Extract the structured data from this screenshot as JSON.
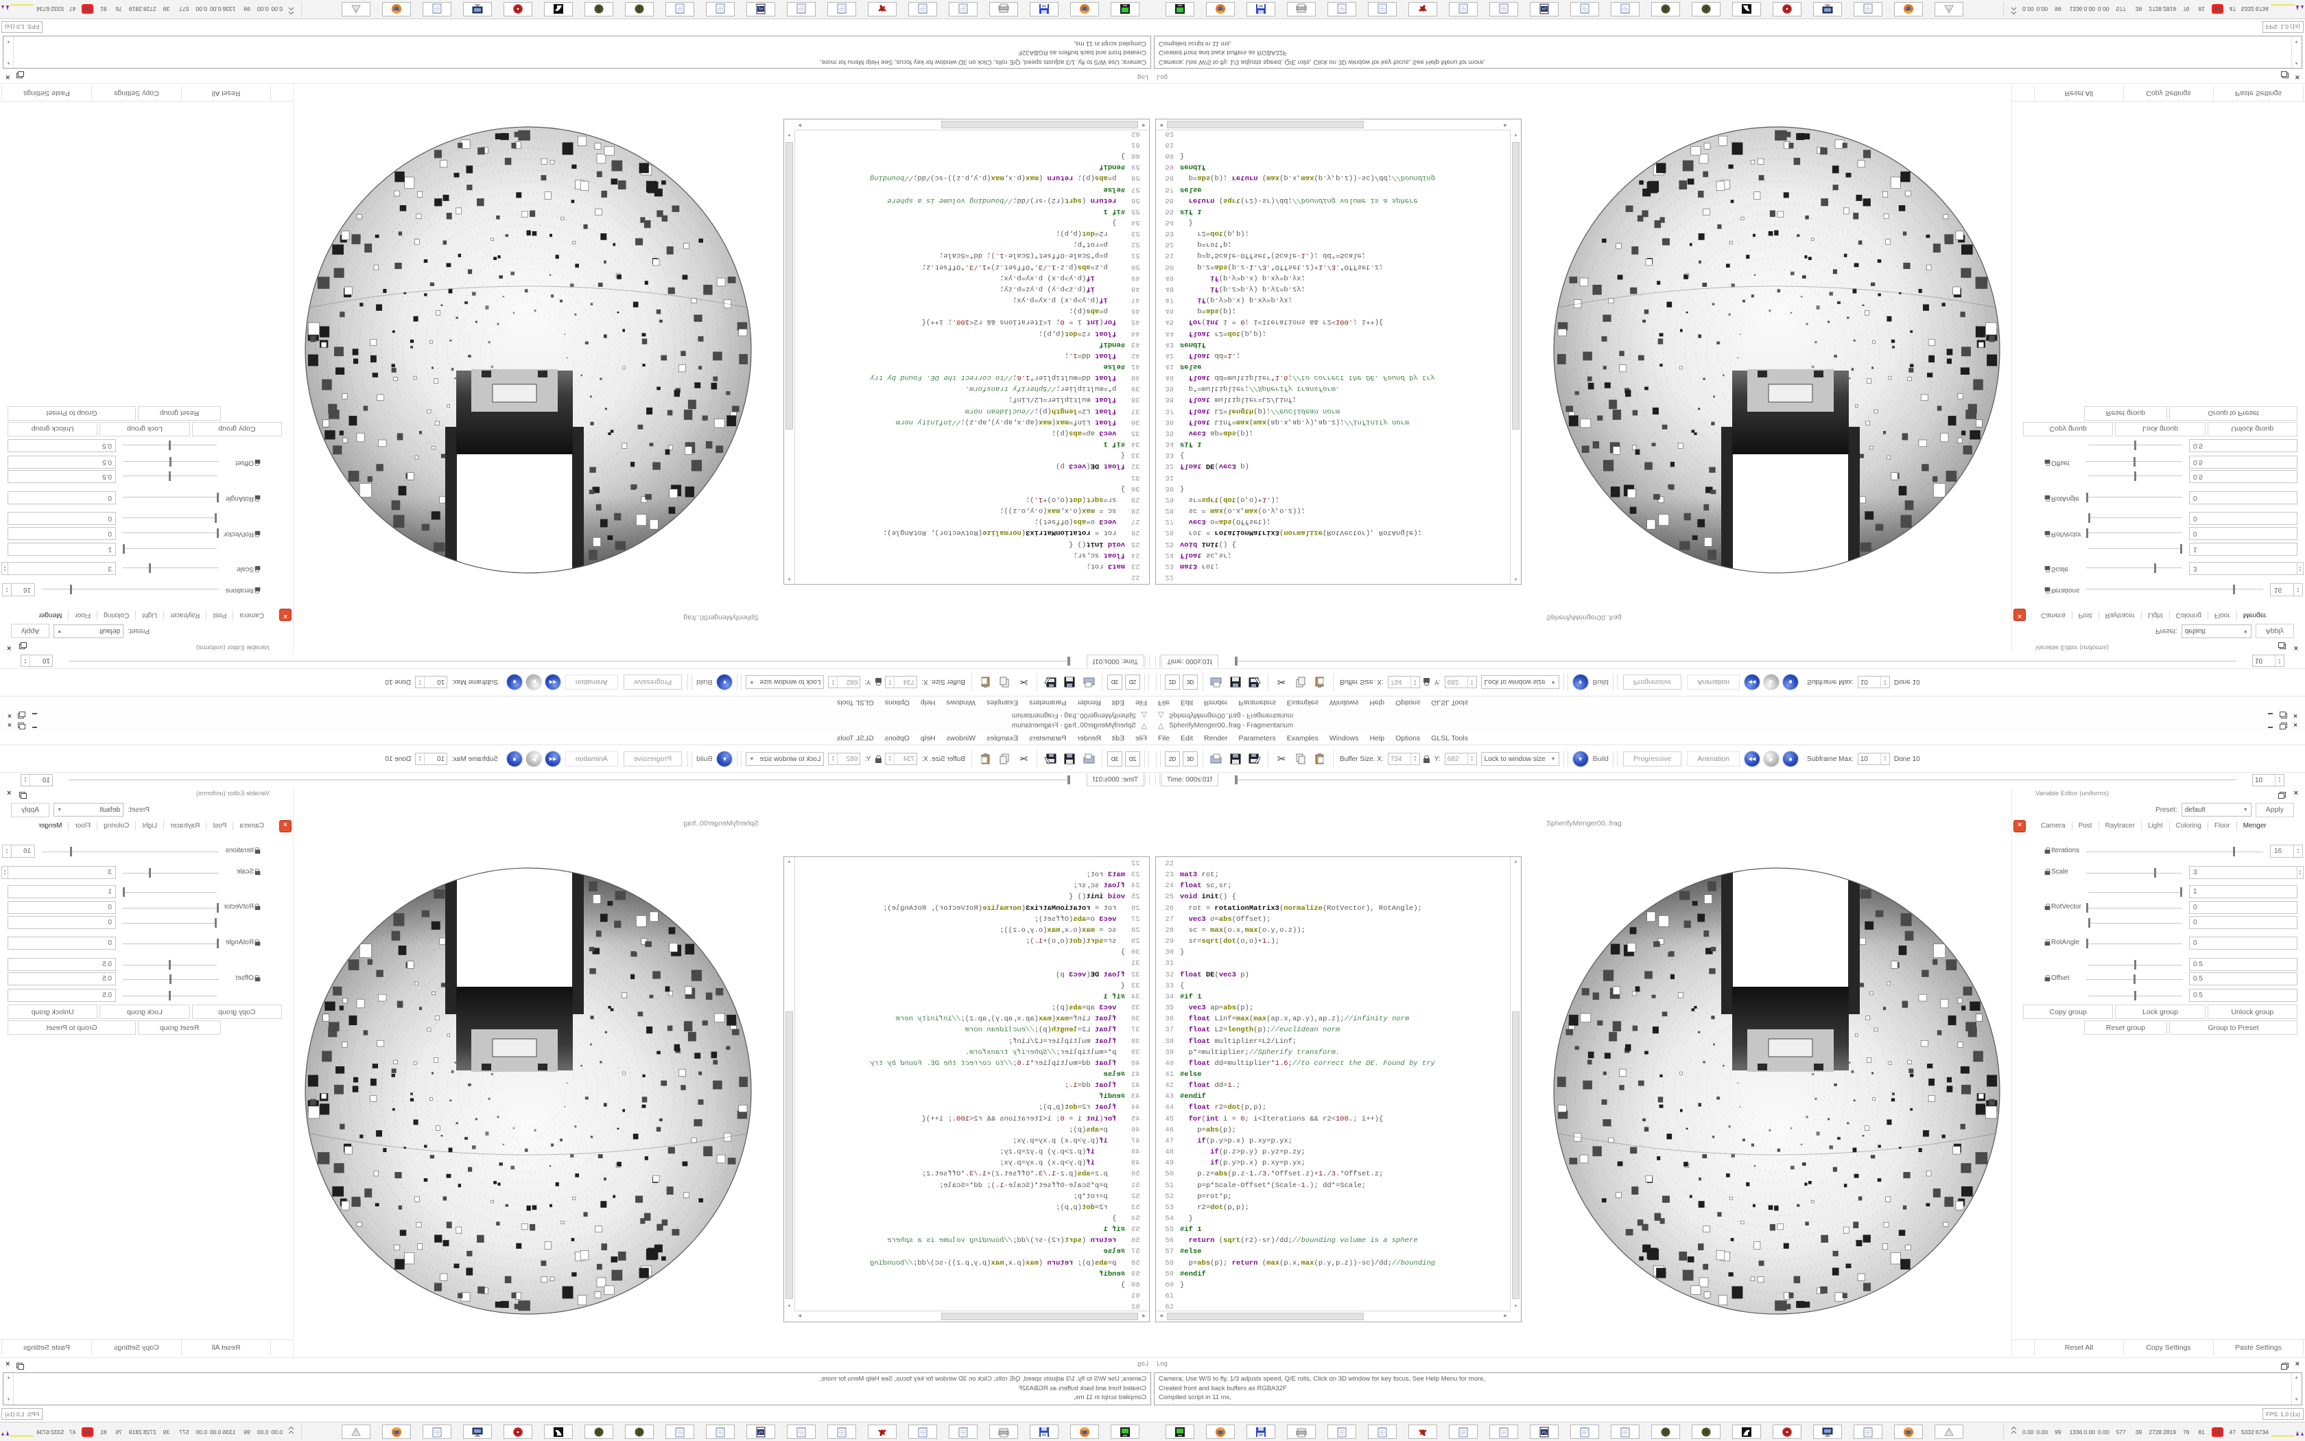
{
  "window": {
    "title": "SpherifyMenger00..frag - Fragmentarium",
    "buttons": {
      "minimize": "minimize",
      "restore": "restore",
      "close": "×"
    }
  },
  "menu": {
    "items": [
      {
        "label": "File"
      },
      {
        "label": "Edit"
      },
      {
        "label": "Render"
      },
      {
        "label": "Parameters"
      },
      {
        "label": "Examples"
      },
      {
        "label": "Windows"
      },
      {
        "label": "Help"
      },
      {
        "label": "Options"
      },
      {
        "label": "GLSL Tools"
      }
    ]
  },
  "toolbar": {
    "btn_2d": "2D",
    "btn_3d": "3D",
    "buffer_size_label": "Buffer Size. X:",
    "buffer_x": "734",
    "buffer_y_label": "Y:",
    "buffer_y": "682",
    "lock_combo_value": "Lock to window size",
    "build_label": "Build",
    "progressive_label": "Progressive",
    "animation_label": "Animation",
    "subframe_max_label": "Subframe Max:",
    "subframe_max_value": "10",
    "done_label": "Done 10"
  },
  "timebar": {
    "label": "Time: 000s:01f",
    "spin_value": "10"
  },
  "editor": {
    "filename_label": "SpherifyMenger00..frag",
    "first_line_number": 22,
    "code": [
      "",
      "mat3 rot;",
      "float sc,sr;",
      "void init() {",
      "  rot = rotationMatrix3(normalize(RotVector), RotAngle);",
      "  vec3 o=abs(Offset);",
      "  sc = max(o.x,max(o.y,o.z));",
      "  sr=sqrt(dot(o,o)+1.);",
      "}",
      "",
      "float DE(vec3 p)",
      "{",
      "#if 1",
      "  vec3 ap=abs(p);",
      "  float Linf=max(max(ap.x,ap.y),ap.z);//infinity norm",
      "  float L2=length(p);//euclidean norm",
      "  float multiplier=L2/Linf;",
      "  p*=multiplier;//Spherify transform.",
      "  float dd=multiplier*1.6;//to correct the DE. Found by try",
      "#else",
      "  float dd=1.;",
      "#endif",
      "  float r2=dot(p,p);",
      "  for(int i = 0; i<Iterations && r2<100.; i++){",
      "    p=abs(p);",
      "    if(p.y>p.x) p.xy=p.yx;",
      "       if(p.z>p.y) p.yz=p.zy;",
      "       if(p.y>p.x) p.xy=p.yx;",
      "    p.z=abs(p.z-1./3.*Offset.z)+1./3.*Offset.z;",
      "    p=p*Scale-Offset*(Scale-1.); dd*=Scale;",
      "    p=rot*p;",
      "    r2=dot(p,p);",
      "  }",
      "#if 1",
      "  return (sqrt(r2)-sr)/dd;//bounding volume is a sphere",
      "#else",
      "  p=abs(p); return (max(p.x,max(p.y,p.z))-sc)/dd;//bounding",
      "#endif",
      "}",
      "",
      ""
    ]
  },
  "variable_editor": {
    "title": "Variable Editor (uniforms)",
    "preset_label": "Preset:",
    "preset_value": "default",
    "apply_label": "Apply",
    "close_button": "x",
    "tabs": [
      {
        "label": "Camera",
        "active": false
      },
      {
        "label": "Post",
        "active": false
      },
      {
        "label": "Raytracer",
        "active": false
      },
      {
        "label": "Light",
        "active": false
      },
      {
        "label": "Coloring",
        "active": false
      },
      {
        "label": "Floor",
        "active": false
      },
      {
        "label": "Menger",
        "active": true
      }
    ],
    "sliders": [
      {
        "label": "Iterations",
        "lock": true,
        "value": "16",
        "fraction": 0.84,
        "box": "narrow",
        "spin": true
      },
      {
        "label": "Scale",
        "lock": true,
        "value": "3",
        "fraction": 0.72,
        "box": "wide",
        "spin": true
      },
      {
        "label": "",
        "lock": false,
        "value": "1",
        "fraction": 1.0,
        "box": "wide",
        "spin": false
      },
      {
        "label": "RotVector",
        "lock": true,
        "value": "0",
        "fraction": 0.0,
        "box": "wide",
        "spin": false
      },
      {
        "label": "",
        "lock": false,
        "value": "0",
        "fraction": 0.0,
        "box": "wide",
        "spin": false
      },
      {
        "label": "RotAngle",
        "lock": true,
        "value": "0",
        "fraction": 0.0,
        "box": "wide",
        "spin": false
      },
      {
        "label": "",
        "lock": false,
        "value": "0.5",
        "fraction": 0.5,
        "box": "wide",
        "spin": false
      },
      {
        "label": "Offset",
        "lock": true,
        "value": "0.5",
        "fraction": 0.5,
        "box": "wide",
        "spin": false
      },
      {
        "label": "",
        "lock": false,
        "value": "0.5",
        "fraction": 0.5,
        "box": "wide",
        "spin": false
      }
    ],
    "group_buttons_row1": [
      "Copy group",
      "Lock group",
      "Unlock group"
    ],
    "group_buttons_row2": [
      "Reset group",
      "Group to Preset"
    ],
    "bottom_buttons": [
      "Reset All",
      "Copy Settings",
      "Paste Settings"
    ]
  },
  "log": {
    "title": "Log",
    "lines": [
      "Camera; Use W/S to fly, 1/3 adjusts speed, Q/E rolls, Click on 3D window for key focus, See Help Menu for more,",
      "Created front and back buffers as RGBA32F",
      "Compiled script in 11 ms,"
    ]
  },
  "status": {
    "fps": "FPS: 1,0 (1s)"
  },
  "taskbar": {
    "icons": [
      {
        "name": "terminal-icon"
      },
      {
        "name": "firefox-icon"
      },
      {
        "name": "floppy64-icon"
      },
      {
        "name": "printer-icon"
      },
      {
        "name": "notepad-icon"
      },
      {
        "name": "notepad-icon"
      },
      {
        "name": "red-splat-icon"
      },
      {
        "name": "notepad-icon"
      },
      {
        "name": "notepad-icon"
      },
      {
        "name": "ps-doc-icon"
      },
      {
        "name": "notepad-icon"
      },
      {
        "name": "notepad-icon"
      },
      {
        "name": "globe-icon"
      },
      {
        "name": "globe-icon"
      },
      {
        "name": "bw-swirl-icon"
      },
      {
        "name": "red-gear-icon"
      },
      {
        "name": "monitor-icon"
      },
      {
        "name": "notepad-icon"
      },
      {
        "name": "firefox-icon"
      },
      {
        "name": "pyramid-icon"
      }
    ],
    "tray": {
      "numbers": [
        "0.00",
        "0.00",
        "99",
        "1336",
        "0.00",
        "0.00",
        "577",
        "39",
        "2728",
        "2819",
        "76",
        "81",
        "50",
        "47",
        "5332",
        "6734"
      ],
      "alert_index": 12
    }
  },
  "colors": {
    "accent_blue": "#2c50c0",
    "alert_red": "#ee2222",
    "keyword": "#7d0c90",
    "builtin": "#7f7f00",
    "comment": "#45824a",
    "preprocessor": "#116b11",
    "number": "#8b1a1a"
  }
}
